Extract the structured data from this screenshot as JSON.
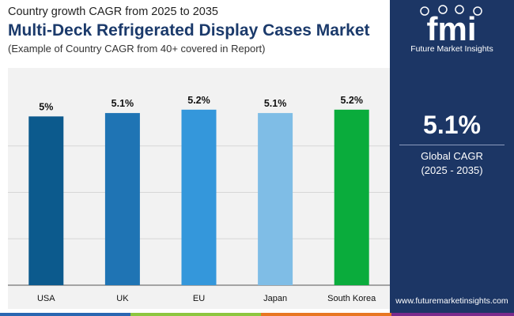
{
  "header": {
    "subtitle_top": "Country growth CAGR from 2025 to 2035",
    "title": "Multi-Deck Refrigerated Display Cases Market",
    "subtitle_bottom": "(Example of Country CAGR from 40+ covered in Report)"
  },
  "side_panel": {
    "logo_text": "fmi",
    "logo_caption": "Future Market Insights",
    "cagr_value": "5.1%",
    "cagr_label": "Global CAGR",
    "cagr_period": "(2025 - 2035)",
    "website": "www.futuremarketinsights.com"
  },
  "colors": {
    "panel_bg": "#1c3665",
    "chart_bg": "#f2f2f2",
    "strip": [
      "#2a66b1",
      "#8dc63f",
      "#e87722",
      "#7a2a8c",
      "#1c3665"
    ]
  },
  "chart_data": {
    "type": "bar",
    "title": "",
    "xlabel": "",
    "ylabel": "",
    "ylim": [
      0,
      5.5
    ],
    "grid": true,
    "categories": [
      "USA",
      "UK",
      "EU",
      "Japan",
      "South Korea"
    ],
    "values": [
      5.0,
      5.1,
      5.2,
      5.1,
      5.2
    ],
    "labels": [
      "5%",
      "5.1%",
      "5.2%",
      "5.1%",
      "5.2%"
    ],
    "colors": [
      "#0c5a8d",
      "#1f74b4",
      "#3497db",
      "#7fbde6",
      "#0aac3c"
    ]
  }
}
